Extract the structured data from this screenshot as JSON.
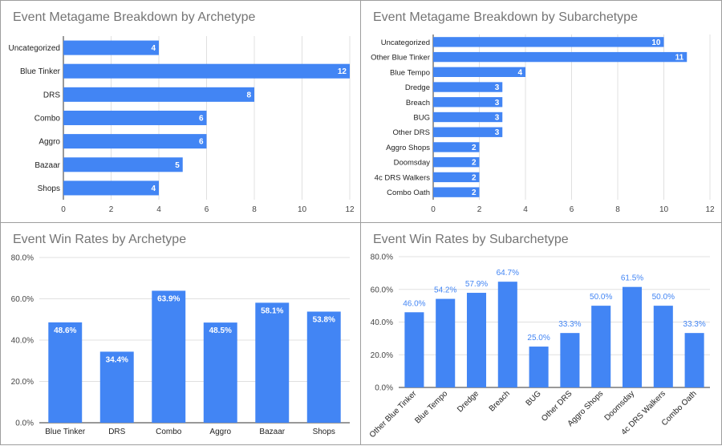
{
  "chart_data": [
    {
      "type": "bar",
      "orientation": "horizontal",
      "title": "Event Metagame Breakdown by Archetype",
      "categories": [
        "Uncategorized",
        "Blue Tinker",
        "DRS",
        "Combo",
        "Aggro",
        "Bazaar",
        "Shops"
      ],
      "values": [
        4,
        12,
        8,
        6,
        6,
        5,
        4
      ],
      "data_labels": [
        "4",
        "12",
        "8",
        "6",
        "6",
        "5",
        "4"
      ],
      "xlim": [
        0,
        12
      ],
      "ticks": [
        0,
        2,
        4,
        6,
        8,
        10,
        12
      ],
      "tick_labels": [
        "0",
        "2",
        "4",
        "6",
        "8",
        "10",
        "12"
      ],
      "grid": true,
      "color": "#4285f4"
    },
    {
      "type": "bar",
      "orientation": "horizontal",
      "title": "Event Metagame Breakdown by Subarchetype",
      "categories": [
        "Uncategorized",
        "Other Blue Tinker",
        "Blue Tempo",
        "Dredge",
        "Breach",
        "BUG",
        "Other DRS",
        "Aggro Shops",
        "Doomsday",
        "4c DRS Walkers",
        "Combo Oath"
      ],
      "values": [
        10,
        11,
        4,
        3,
        3,
        3,
        3,
        2,
        2,
        2,
        2
      ],
      "data_labels": [
        "10",
        "11",
        "4",
        "3",
        "3",
        "3",
        "3",
        "2",
        "2",
        "2",
        "2"
      ],
      "xlim": [
        0,
        12
      ],
      "ticks": [
        0,
        2,
        4,
        6,
        8,
        10,
        12
      ],
      "tick_labels": [
        "0",
        "2",
        "4",
        "6",
        "8",
        "10",
        "12"
      ],
      "grid": true,
      "color": "#4285f4"
    },
    {
      "type": "bar",
      "orientation": "vertical",
      "title": "Event Win Rates by Archetype",
      "categories": [
        "Blue Tinker",
        "DRS",
        "Combo",
        "Aggro",
        "Bazaar",
        "Shops"
      ],
      "values": [
        48.6,
        34.4,
        63.9,
        48.5,
        58.1,
        53.8
      ],
      "data_labels": [
        "48.6%",
        "34.4%",
        "63.9%",
        "48.5%",
        "58.1%",
        "53.8%"
      ],
      "ylim": [
        0,
        80
      ],
      "ticks": [
        0,
        20,
        40,
        60,
        80
      ],
      "tick_labels": [
        "0.0%",
        "20.0%",
        "40.0%",
        "60.0%",
        "80.0%"
      ],
      "grid": true,
      "label_position": "inside",
      "color": "#4285f4"
    },
    {
      "type": "bar",
      "orientation": "vertical",
      "title": "Event Win Rates by Subarchetype",
      "categories": [
        "Other Blue Tinker",
        "Blue Tempo",
        "Dredge",
        "Breach",
        "BUG",
        "Other DRS",
        "Aggro Shops",
        "Doomsday",
        "4c DRS Walkers",
        "Combo Oath"
      ],
      "values": [
        46.0,
        54.2,
        57.9,
        64.7,
        25.0,
        33.3,
        50.0,
        61.5,
        50.0,
        33.3
      ],
      "data_labels": [
        "46.0%",
        "54.2%",
        "57.9%",
        "64.7%",
        "25.0%",
        "33.3%",
        "50.0%",
        "61.5%",
        "50.0%",
        "33.3%"
      ],
      "ylim": [
        0,
        80
      ],
      "ticks": [
        0,
        20,
        40,
        60,
        80
      ],
      "tick_labels": [
        "0.0%",
        "20.0%",
        "40.0%",
        "60.0%",
        "80.0%"
      ],
      "grid": true,
      "label_position": "above",
      "rotated_category_labels": true,
      "color": "#4285f4"
    }
  ]
}
